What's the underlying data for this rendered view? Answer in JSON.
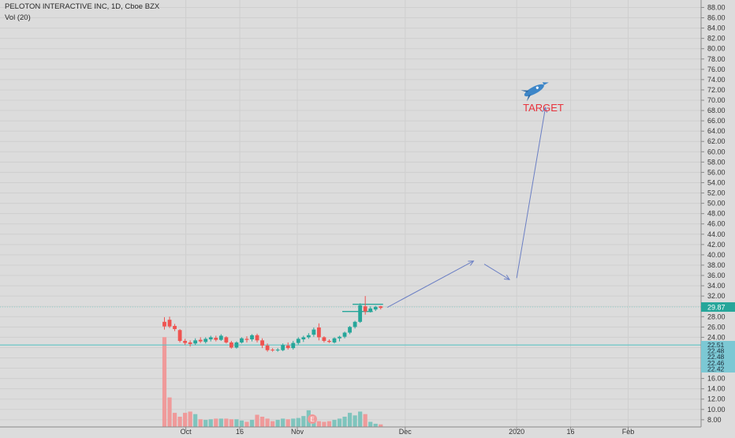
{
  "header": {
    "title": "PELOTON INTERACTIVE INC, 1D, Cboe BZX",
    "indicator": "Vol (20)"
  },
  "annotation": {
    "target_label": "TARGET",
    "target_icon": "rocket-icon",
    "target_color": "#e8323c",
    "arrow_color": "#6b7fc4"
  },
  "colors": {
    "background": "#dcdcdc",
    "up": "#26a69a",
    "down": "#ef5350",
    "up_volume": "#7fc4bd",
    "down_volume": "#ef9a9a",
    "grid": "#cfcfcf",
    "price_line": "#4fc3c3",
    "current_price_badge": "#26a69a"
  },
  "chart_data": {
    "type": "candlestick",
    "title": "PELOTON INTERACTIVE INC, 1D, Cboe BZX",
    "ylim": [
      6.6,
      89.5
    ],
    "grid": true,
    "price_ticks": [
      8,
      10,
      12,
      14,
      16,
      18,
      20,
      22,
      24,
      26,
      28,
      30,
      32,
      34,
      36,
      38,
      40,
      42,
      44,
      46,
      48,
      50,
      52,
      54,
      56,
      58,
      60,
      62,
      64,
      66,
      68,
      70,
      72,
      74,
      76,
      78,
      80,
      82,
      84,
      86,
      88
    ],
    "time_ticks": [
      "Oct",
      "16",
      "Nov",
      "Dec",
      "2020",
      "16",
      "Feb"
    ],
    "price_labels": {
      "current": "29.87",
      "cluster": [
        "22.51",
        "22.48",
        "22.48",
        "22.46",
        "22.42"
      ]
    },
    "candles": [
      {
        "date": "2019-09-26",
        "open": 27.0,
        "high": 27.9,
        "low": 25.5,
        "close": 26.1
      },
      {
        "date": "2019-09-27",
        "open": 27.4,
        "high": 28.0,
        "low": 25.8,
        "close": 26.1
      },
      {
        "date": "2019-09-30",
        "open": 26.2,
        "high": 26.6,
        "low": 25.2,
        "close": 25.6
      },
      {
        "date": "2019-10-01",
        "open": 25.4,
        "high": 25.6,
        "low": 23.0,
        "close": 23.3
      },
      {
        "date": "2019-10-02",
        "open": 23.3,
        "high": 23.7,
        "low": 22.5,
        "close": 22.9
      },
      {
        "date": "2019-10-03",
        "open": 23.0,
        "high": 23.4,
        "low": 22.2,
        "close": 22.7
      },
      {
        "date": "2019-10-04",
        "open": 22.8,
        "high": 23.8,
        "low": 22.5,
        "close": 23.4
      },
      {
        "date": "2019-10-07",
        "open": 23.5,
        "high": 24.0,
        "low": 22.9,
        "close": 23.2
      },
      {
        "date": "2019-10-08",
        "open": 23.1,
        "high": 24.0,
        "low": 22.8,
        "close": 23.7
      },
      {
        "date": "2019-10-09",
        "open": 23.6,
        "high": 24.3,
        "low": 23.2,
        "close": 24.0
      },
      {
        "date": "2019-10-10",
        "open": 23.9,
        "high": 24.3,
        "low": 23.2,
        "close": 23.5
      },
      {
        "date": "2019-10-11",
        "open": 23.5,
        "high": 24.6,
        "low": 23.3,
        "close": 24.3
      },
      {
        "date": "2019-10-14",
        "open": 24.0,
        "high": 24.2,
        "low": 22.8,
        "close": 23.0
      },
      {
        "date": "2019-10-15",
        "open": 23.0,
        "high": 23.3,
        "low": 21.8,
        "close": 22.0
      },
      {
        "date": "2019-10-16",
        "open": 22.0,
        "high": 23.2,
        "low": 21.8,
        "close": 23.0
      },
      {
        "date": "2019-10-17",
        "open": 23.0,
        "high": 24.0,
        "low": 22.8,
        "close": 23.8
      },
      {
        "date": "2019-10-18",
        "open": 23.7,
        "high": 24.2,
        "low": 23.0,
        "close": 23.5
      },
      {
        "date": "2019-10-21",
        "open": 23.6,
        "high": 24.6,
        "low": 23.2,
        "close": 24.4
      },
      {
        "date": "2019-10-22",
        "open": 24.4,
        "high": 24.7,
        "low": 23.0,
        "close": 23.4
      },
      {
        "date": "2019-10-23",
        "open": 23.4,
        "high": 23.8,
        "low": 21.9,
        "close": 22.4
      },
      {
        "date": "2019-10-24",
        "open": 22.4,
        "high": 22.8,
        "low": 21.2,
        "close": 21.5
      },
      {
        "date": "2019-10-25",
        "open": 21.6,
        "high": 21.9,
        "low": 21.2,
        "close": 21.5
      },
      {
        "date": "2019-10-28",
        "open": 21.5,
        "high": 21.9,
        "low": 21.2,
        "close": 21.6
      },
      {
        "date": "2019-10-29",
        "open": 21.5,
        "high": 22.8,
        "low": 21.3,
        "close": 22.5
      },
      {
        "date": "2019-10-30",
        "open": 22.4,
        "high": 23.0,
        "low": 21.6,
        "close": 21.9
      },
      {
        "date": "2019-10-31",
        "open": 21.9,
        "high": 23.3,
        "low": 21.6,
        "close": 22.9
      },
      {
        "date": "2019-11-01",
        "open": 22.9,
        "high": 24.0,
        "low": 22.6,
        "close": 23.7
      },
      {
        "date": "2019-11-04",
        "open": 23.6,
        "high": 24.3,
        "low": 23.1,
        "close": 24.0
      },
      {
        "date": "2019-11-05",
        "open": 24.0,
        "high": 24.8,
        "low": 23.7,
        "close": 24.4
      },
      {
        "date": "2019-11-06",
        "open": 24.5,
        "high": 25.9,
        "low": 24.1,
        "close": 25.5
      },
      {
        "date": "2019-11-07",
        "open": 25.9,
        "high": 26.7,
        "low": 23.4,
        "close": 24.0
      },
      {
        "date": "2019-11-08",
        "open": 24.0,
        "high": 24.2,
        "low": 23.0,
        "close": 23.3
      },
      {
        "date": "2019-11-11",
        "open": 23.3,
        "high": 23.6,
        "low": 22.9,
        "close": 23.1
      },
      {
        "date": "2019-11-12",
        "open": 23.0,
        "high": 24.0,
        "low": 22.8,
        "close": 23.8
      },
      {
        "date": "2019-11-13",
        "open": 23.8,
        "high": 24.3,
        "low": 23.2,
        "close": 24.1
      },
      {
        "date": "2019-11-14",
        "open": 24.1,
        "high": 25.1,
        "low": 23.8,
        "close": 24.9
      },
      {
        "date": "2019-11-15",
        "open": 24.9,
        "high": 26.2,
        "low": 24.6,
        "close": 26.0
      },
      {
        "date": "2019-11-18",
        "open": 26.0,
        "high": 27.2,
        "low": 25.7,
        "close": 27.0
      },
      {
        "date": "2019-11-19",
        "open": 27.0,
        "high": 30.6,
        "low": 26.8,
        "close": 30.2
      },
      {
        "date": "2019-11-20",
        "open": 30.0,
        "high": 32.0,
        "low": 28.4,
        "close": 29.0
      },
      {
        "date": "2019-11-21",
        "open": 29.0,
        "high": 30.0,
        "low": 28.8,
        "close": 29.6
      },
      {
        "date": "2019-11-22",
        "open": 29.4,
        "high": 30.1,
        "low": 29.1,
        "close": 29.9
      },
      {
        "date": "2019-11-25",
        "open": 30.0,
        "high": 30.1,
        "low": 29.4,
        "close": 29.7
      }
    ],
    "volume": [
      140,
      46,
      22,
      16,
      22,
      24,
      20,
      12,
      11,
      12,
      13,
      13,
      13,
      12,
      12,
      10,
      8,
      11,
      19,
      16,
      13,
      9,
      11,
      13,
      12,
      13,
      14,
      17,
      26,
      17,
      9,
      8,
      9,
      11,
      13,
      16,
      22,
      18,
      24,
      20,
      8,
      5,
      4
    ],
    "levels": [
      {
        "value": 30.4,
        "from_index": 37,
        "to_index": 42,
        "color": "#26a69a"
      },
      {
        "value": 29.0,
        "from_index": 35,
        "to_index": 40,
        "color": "#26a69a"
      }
    ],
    "hline": {
      "value": 22.5,
      "color": "#4fc3c3"
    },
    "projection_path": [
      {
        "date": "2019-11-26",
        "price": 29.8
      },
      {
        "date": "2019-12-20",
        "price": 38.8
      },
      {
        "date": "2019-12-23",
        "price": 38.2
      },
      {
        "date": "2019-12-30",
        "price": 35.2
      },
      {
        "date": "2020-01-01",
        "price": 35.5
      },
      {
        "date": "2020-01-09",
        "price": 68.6
      }
    ]
  }
}
